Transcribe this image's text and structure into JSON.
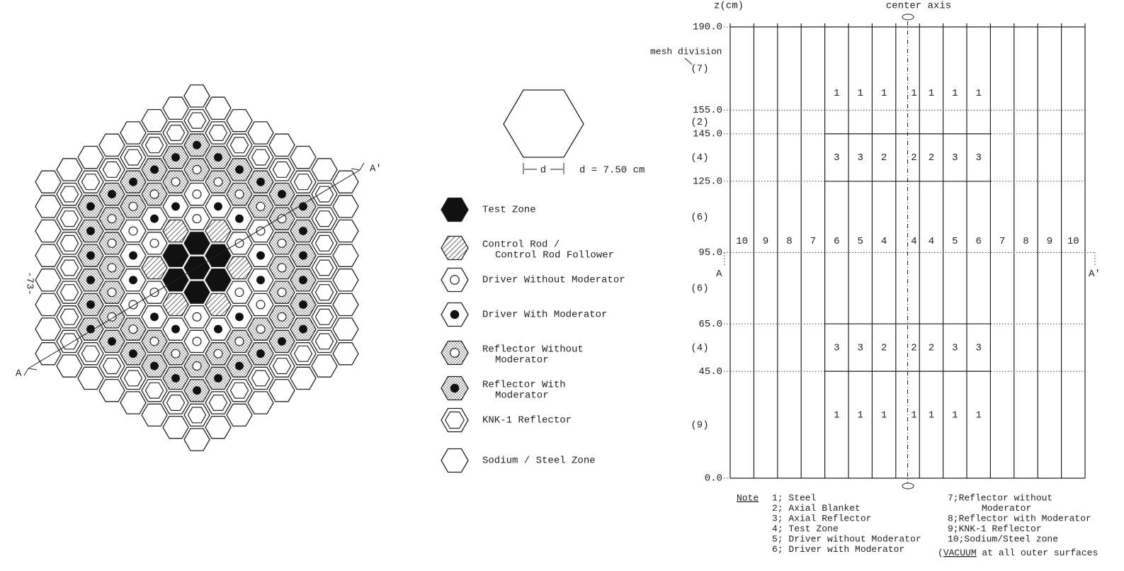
{
  "core_map": {
    "section_start": "A",
    "section_end": "A'",
    "page_number": "-73-"
  },
  "legend": {
    "hex_size_symbol": "d",
    "hex_size": "d = 7.50 cm",
    "items": [
      {
        "lines": [
          "Test Zone"
        ]
      },
      {
        "lines": [
          "Control Rod /",
          "Control Rod Follower"
        ]
      },
      {
        "lines": [
          "Driver Without Moderator"
        ]
      },
      {
        "lines": [
          "Driver With Moderator"
        ]
      },
      {
        "lines": [
          "Reflector Without",
          "Moderator"
        ]
      },
      {
        "lines": [
          "Reflector With",
          "Moderator"
        ]
      },
      {
        "lines": [
          "KNK-1 Reflector"
        ]
      },
      {
        "lines": [
          "Sodium / Steel Zone"
        ]
      }
    ]
  },
  "rz_model": {
    "z_axis_label": "z(cm)",
    "center_axis_label": "center axis",
    "mesh_division_label": "mesh division",
    "z_levels": [
      "190.0",
      "155.0",
      "145.0",
      "125.0",
      "95.0",
      "65.0",
      "45.0",
      "0.0"
    ],
    "mesh_divisions": [
      "(7)",
      "(2)",
      "(4)",
      "(6)",
      "(6)",
      "(4)",
      "(9)"
    ],
    "column_regions": [
      "10",
      "9",
      "8",
      "7",
      "6",
      "5",
      "4",
      "4",
      "4",
      "5",
      "6",
      "7",
      "8",
      "9",
      "10"
    ],
    "rows": {
      "top": [
        "1",
        "1",
        "1",
        "1",
        "1",
        "1",
        "1"
      ],
      "upper": [
        "3",
        "3",
        "2",
        "2",
        "2",
        "3",
        "3"
      ],
      "lower": [
        "3",
        "3",
        "2",
        "2",
        "2",
        "3",
        "3"
      ],
      "bottom": [
        "1",
        "1",
        "1",
        "1",
        "1",
        "1",
        "1"
      ]
    },
    "section_start": "A",
    "section_end": "A'",
    "note_label": "Note",
    "notes_left": [
      "1; Steel",
      "2; Axial Blanket",
      "3; Axial Reflector",
      "4; Test Zone",
      "5; Driver without Moderator",
      "6; Driver with Moderator"
    ],
    "notes_right": [
      {
        "lines": [
          "7;Reflector without",
          "Moderator"
        ]
      },
      {
        "lines": [
          "8;Reflector with Moderator"
        ]
      },
      {
        "lines": [
          "9;KNK-1 Reflector"
        ]
      },
      {
        "lines": [
          "10;Sodium/Steel zone"
        ]
      }
    ],
    "vacuum_note": {
      "prefix": "(",
      "emphasis": "VACUUM",
      "suffix": " at all outer surfaces"
    }
  }
}
